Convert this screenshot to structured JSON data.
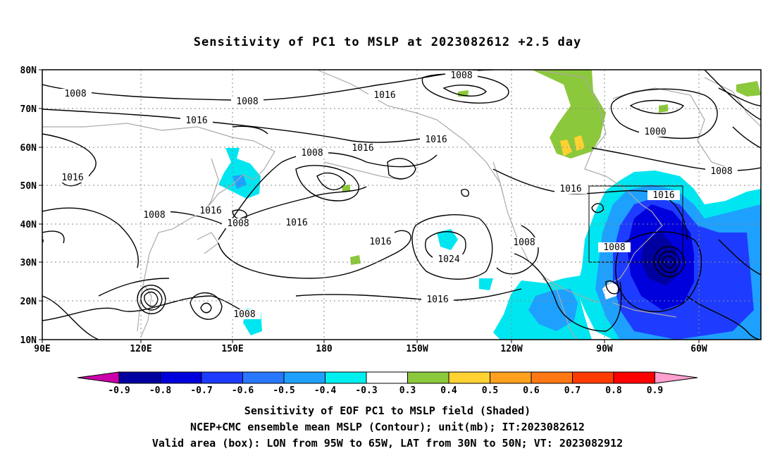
{
  "title": "Sensitivity of PC1 to MSLP at 2023082612 +2.5 day",
  "lat_labels": [
    "80N",
    "70N",
    "60N",
    "50N",
    "40N",
    "30N",
    "20N",
    "10N"
  ],
  "lon_labels": [
    "90E",
    "120E",
    "150E",
    "180",
    "150W",
    "120W",
    "90W",
    "60W"
  ],
  "contour_labels": [
    "1008",
    "1008",
    "1016",
    "1016",
    "1008",
    "1016",
    "1016",
    "1016",
    "1016",
    "1008",
    "1000",
    "1008",
    "1016",
    "1016",
    "1008",
    "1008",
    "1016",
    "1016",
    "1024",
    "1008",
    "1008",
    "1016",
    "1016",
    "1008"
  ],
  "colorbar": {
    "tick_labels": [
      "-0.9",
      "-0.8",
      "-0.7",
      "-0.6",
      "-0.5",
      "-0.4",
      "-0.3",
      "0.3",
      "0.4",
      "0.5",
      "0.6",
      "0.7",
      "0.8",
      "0.9"
    ],
    "colors": [
      "#cc00aa",
      "#0000a0",
      "#0000dd",
      "#1e3cff",
      "#2878ff",
      "#1ea0ff",
      "#00c8f0",
      "#00f0f0",
      "#ffffff",
      "#8cc83c",
      "#ffd232",
      "#ffa01e",
      "#ff7814",
      "#ff3c00",
      "#ff0000",
      "#ffa0d0"
    ]
  },
  "valid_box": {
    "lon": [
      "95W",
      "65W"
    ],
    "lat": [
      "30N",
      "50N"
    ]
  },
  "captions": [
    "Sensitivity of EOF PC1 to MSLP field (Shaded)",
    "NCEP+CMC ensemble mean MSLP (Contour); unit(mb); IT:2023082612",
    "Valid area (box): LON from 95W to 65W, LAT from 30N to 50N; VT: 2023082912"
  ]
}
